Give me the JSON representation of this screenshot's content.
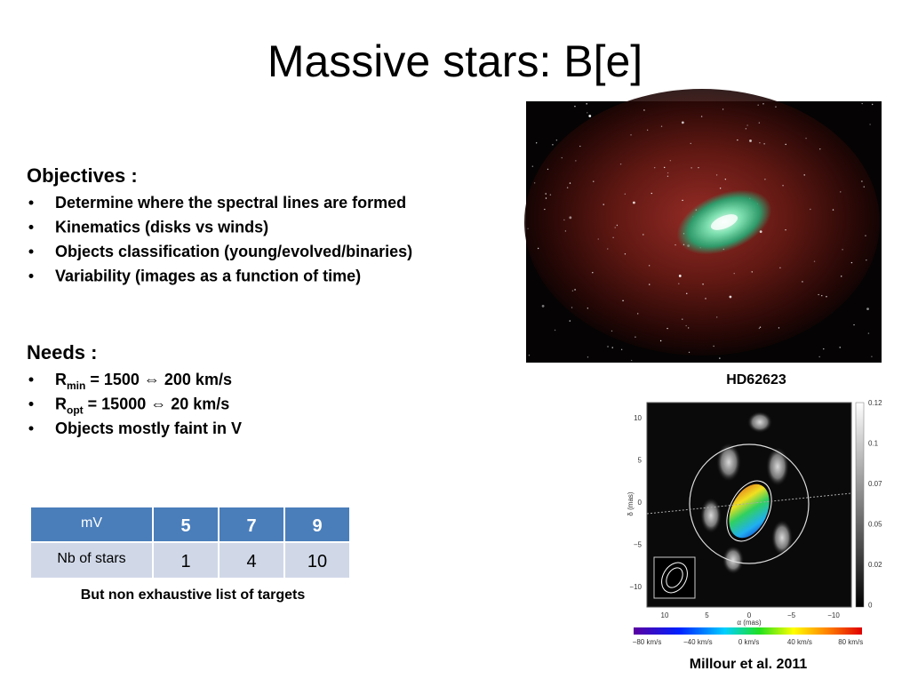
{
  "header": {
    "title": "Massive stars: B[e]"
  },
  "objectives": {
    "heading": "Objectives :",
    "items": [
      "Determine where the spectral lines are formed",
      "Kinematics (disks vs winds)",
      "Objects classification (young/evolved/binaries)",
      "Variability (images as a function of time)"
    ]
  },
  "needs": {
    "heading": "Needs :",
    "items": [
      {
        "main": "R",
        "sub": "min",
        "rest": " = 1500 ⇔ 200 km/s"
      },
      {
        "main": "R",
        "sub": "opt",
        "rest": " = 15000 ⇔ 20 km/s"
      },
      {
        "main": "Objects mostly faint in V"
      }
    ]
  },
  "table": {
    "rows": [
      [
        "mV",
        5,
        7,
        9
      ],
      [
        "Nb of stars",
        1,
        4,
        10
      ]
    ],
    "caption": "But non exhaustive list of targets"
  },
  "image": {
    "label": "HD62623"
  },
  "figure": {
    "y_label": "δ (mas)",
    "x_label": "α (mas)",
    "y_ticks": [
      "10",
      "5",
      "0",
      "−5",
      "−10"
    ],
    "x_ticks": [
      "10",
      "5",
      "0",
      "−5",
      "−10"
    ],
    "colorbar_ticks": [
      "0.12",
      "0.1",
      "0.07",
      "0.05",
      "0.02",
      "0"
    ],
    "velocity_ticks": [
      "−80 km/s",
      "−40 km/s",
      "0 km/s",
      "40 km/s",
      "80 km/s"
    ],
    "credit": "Millour et al. 2011"
  }
}
